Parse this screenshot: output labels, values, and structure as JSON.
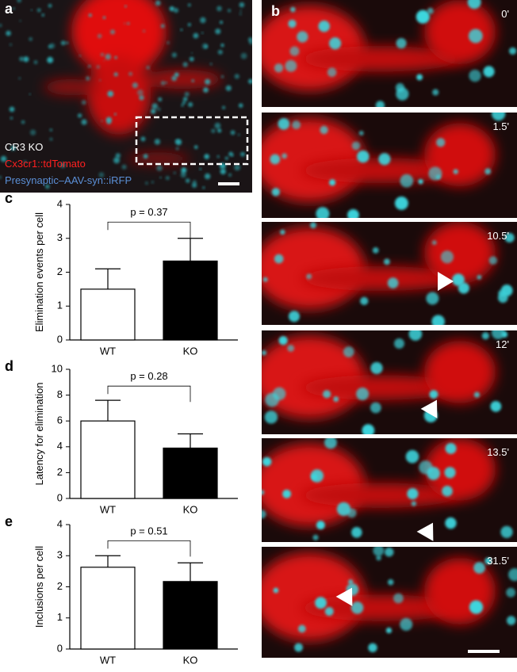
{
  "panels": {
    "a": {
      "label": "a",
      "lines": [
        "CR3 KO",
        "Cx3cr1::tdTomato",
        "Presynaptic–AAV-syn::iRFP"
      ]
    },
    "b": {
      "label": "b",
      "times": [
        "0'",
        "1.5'",
        "10.5'",
        "12'",
        "13.5'",
        "31.5'"
      ]
    },
    "c": {
      "label": "c"
    },
    "d": {
      "label": "d"
    },
    "e": {
      "label": "e"
    }
  },
  "chart_data": [
    {
      "type": "bar",
      "ylabel": "Elimination events per cell",
      "categories": [
        "WT",
        "KO"
      ],
      "values": [
        1.5,
        2.33
      ],
      "errors": [
        0.6,
        0.67
      ],
      "colors": [
        "#ffffff",
        "#000000"
      ],
      "annotation": "p = 0.37",
      "ylim": [
        0,
        4
      ],
      "yticks": [
        0,
        1,
        2,
        3,
        4
      ]
    },
    {
      "type": "bar",
      "ylabel": "Latency for elimination",
      "categories": [
        "WT",
        "KO"
      ],
      "values": [
        6.0,
        3.9
      ],
      "errors": [
        1.6,
        1.1
      ],
      "colors": [
        "#ffffff",
        "#000000"
      ],
      "annotation": "p = 0.28",
      "ylim": [
        0,
        10
      ],
      "yticks": [
        0,
        2,
        4,
        6,
        8,
        10
      ]
    },
    {
      "type": "bar",
      "ylabel": "Inclusions per cell",
      "categories": [
        "WT",
        "KO"
      ],
      "values": [
        2.63,
        2.17
      ],
      "errors": [
        0.37,
        0.6
      ],
      "colors": [
        "#ffffff",
        "#000000"
      ],
      "annotation": "p = 0.51",
      "ylim": [
        0,
        4
      ],
      "yticks": [
        0,
        1,
        2,
        3,
        4
      ]
    }
  ]
}
